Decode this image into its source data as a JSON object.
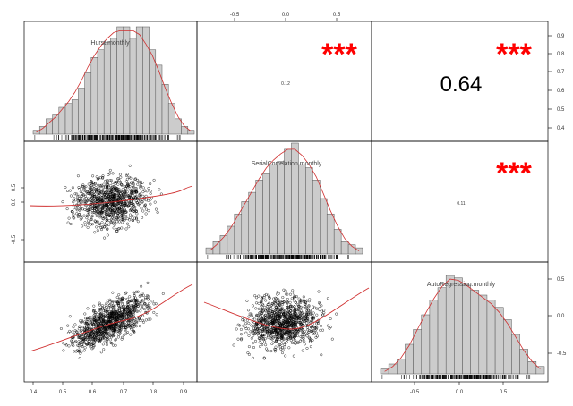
{
  "chart_data": {
    "type": "scatter-matrix",
    "variables": [
      "Hurst.monthly",
      "SerialCorrelation.monthly",
      "AutoRegression.monthly"
    ],
    "colors": {
      "bar_fill": "#cccccc",
      "density": "#d03030",
      "stars": "#ff0000",
      "points": "#000000"
    },
    "ticks": {
      "top": [
        "-0.5",
        "0.0",
        "0.5"
      ],
      "bottom_left": [
        "0.4",
        "0.5",
        "0.6",
        "0.7",
        "0.8",
        "0.9"
      ],
      "bottom_right": [
        "-0.5",
        "0.0",
        "0.5"
      ],
      "left": [
        "0.5",
        "0.0",
        "-0.5"
      ],
      "right_top": [
        "0.9",
        "0.8",
        "0.7",
        "0.6",
        "0.5",
        "0.4"
      ],
      "right_bottom": [
        "0.5",
        "0.0",
        "-0.5"
      ]
    },
    "correlations": [
      {
        "pair": [
          "Hurst.monthly",
          "SerialCorrelation.monthly"
        ],
        "text": "0.12",
        "stars": "***",
        "big": false
      },
      {
        "pair": [
          "Hurst.monthly",
          "AutoRegression.monthly"
        ],
        "text": "0.64",
        "stars": "***",
        "big": true
      },
      {
        "pair": [
          "SerialCorrelation.monthly",
          "AutoRegression.monthly"
        ],
        "text": "0.11",
        "stars": "***",
        "big": false
      }
    ],
    "histograms": {
      "Hurst.monthly": {
        "range": [
          0.36,
          0.93
        ],
        "counts": [
          1,
          2,
          4,
          5,
          7,
          8,
          9,
          12,
          16,
          20,
          22,
          24,
          25,
          28,
          28,
          25,
          28,
          28,
          22,
          18,
          13,
          8,
          4,
          2,
          1
        ],
        "density": [
          0.5,
          1.5,
          3,
          4.5,
          6.5,
          8.5,
          11,
          14,
          17.5,
          20.5,
          23,
          25,
          26.5,
          27,
          27,
          27,
          26,
          23.5,
          20.5,
          16.5,
          12,
          8,
          4.5,
          2,
          0.8
        ]
      },
      "SerialCorrelation.monthly": {
        "range": [
          -0.78,
          0.72
        ],
        "counts": [
          2,
          4,
          6,
          9,
          13,
          17,
          20,
          24,
          26,
          29,
          30,
          34,
          36,
          29,
          28,
          24,
          18,
          13,
          8,
          4,
          3,
          2
        ],
        "density": [
          1,
          3,
          5.5,
          8.5,
          12.5,
          16.5,
          20.5,
          24.5,
          28,
          30.5,
          32.5,
          34,
          34,
          32,
          29,
          25,
          19.5,
          14,
          9,
          5,
          2.5,
          1
        ]
      },
      "AutoRegression.monthly": {
        "range": [
          -0.68,
          0.6
        ],
        "counts": [
          2,
          4,
          6,
          12,
          18,
          24,
          30,
          35,
          40,
          39,
          36,
          34,
          32,
          30,
          27,
          22,
          16,
          10,
          5,
          3
        ],
        "density": [
          1,
          3,
          6.5,
          11.5,
          18,
          24.5,
          30.5,
          35.5,
          38.5,
          38,
          36,
          33.5,
          31,
          28.5,
          25,
          20.5,
          15,
          9.5,
          5,
          2
        ]
      }
    }
  }
}
